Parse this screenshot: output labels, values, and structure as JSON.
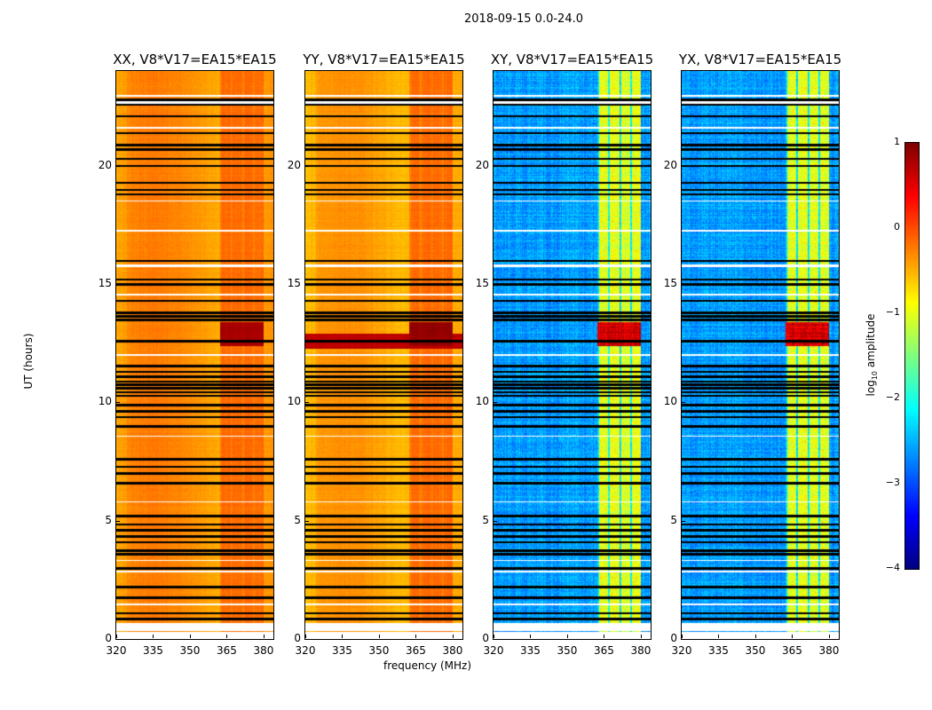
{
  "suptitle": "2018-09-15 0.0-24.0",
  "chart_data": {
    "type": "heatmap",
    "title": "2018-09-15 0.0-24.0",
    "xlabel": "frequency (MHz)",
    "ylabel": "UT (hours)",
    "xlim": [
      320,
      384
    ],
    "ylim": [
      0,
      24
    ],
    "xticks": [
      "320",
      "335",
      "350",
      "365",
      "380"
    ],
    "xtick_values": [
      320,
      335,
      350,
      365,
      380
    ],
    "yticks": [
      "0",
      "5",
      "10",
      "15",
      "20"
    ],
    "ytick_values": [
      0,
      5,
      10,
      15,
      20
    ],
    "colorbar": {
      "label": "log10 amplitude",
      "label_main": "log",
      "label_sub": "10",
      "label_tail": " amplitude",
      "range": [
        -4,
        1
      ],
      "ticks": [
        "1",
        "0",
        "−1",
        "−2",
        "−3",
        "−4"
      ],
      "tick_values": [
        1,
        0,
        -1,
        -2,
        -3,
        -4
      ],
      "colormap": "jet"
    },
    "rfi_band_mhz": [
      362,
      380
    ],
    "panels": [
      {
        "title": "XX, V8*V17=EA15*EA15",
        "base_level": -0.35,
        "rfi_level": -0.15,
        "noise": 0.12,
        "burst_level": 0.8
      },
      {
        "title": "YY, V8*V17=EA15*EA15",
        "base_level": -0.45,
        "rfi_level": -0.15,
        "noise": 0.12,
        "burst_level": 0.9
      },
      {
        "title": "XY, V8*V17=EA15*EA15",
        "base_level": -2.6,
        "rfi_level": -1.0,
        "noise": 0.45,
        "burst_level": 0.0
      },
      {
        "title": "YX, V8*V17=EA15*EA15",
        "base_level": -2.6,
        "rfi_level": -1.0,
        "noise": 0.45,
        "burst_level": 0.0
      }
    ],
    "burst_hours": [
      12.4,
      13.4
    ],
    "no_data_hours": [
      [
        0,
        0.3
      ],
      [
        0.35,
        0.7
      ],
      [
        1.45,
        1.5
      ],
      [
        2.85,
        2.92
      ],
      [
        3.3,
        3.35
      ],
      [
        5.8,
        5.85
      ],
      [
        8.55,
        8.6
      ],
      [
        12.0,
        12.05
      ],
      [
        14.55,
        14.6
      ],
      [
        15.75,
        15.85
      ],
      [
        17.25,
        17.32
      ],
      [
        18.5,
        18.55
      ],
      [
        21.6,
        21.65
      ],
      [
        22.65,
        22.75
      ],
      [
        22.95,
        23.0
      ]
    ],
    "flag_lines_hours": [
      0.85,
      1.1,
      1.75,
      2.2,
      3.0,
      3.6,
      3.75,
      4.1,
      4.35,
      4.6,
      4.85,
      5.2,
      6.6,
      7.0,
      7.3,
      7.6,
      9.0,
      9.4,
      9.65,
      9.9,
      10.3,
      10.45,
      10.6,
      10.75,
      10.9,
      11.1,
      11.3,
      11.55,
      12.6,
      13.5,
      13.65,
      13.8,
      14.3,
      15.0,
      15.2,
      16.0,
      18.8,
      19.0,
      19.3,
      20.0,
      20.3,
      20.7,
      20.9,
      21.4,
      22.1,
      22.6,
      22.8
    ]
  }
}
